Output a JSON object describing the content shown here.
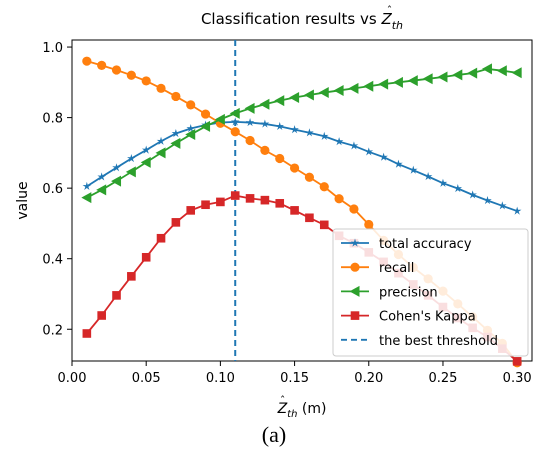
{
  "caption": "(a)",
  "chart_data": {
    "type": "line",
    "title_prefix": "Classification results vs ",
    "title_var": "Z",
    "title_sub": "th",
    "xlabel_var": "Z",
    "xlabel_sub": "th",
    "xlabel_unit": " (m)",
    "ylabel": "value",
    "xlim": [
      0.0,
      0.31
    ],
    "ylim": [
      0.11,
      1.02
    ],
    "xticks": [
      0.0,
      0.05,
      0.1,
      0.15,
      0.2,
      0.25,
      0.3
    ],
    "xtick_labels": [
      "0.00",
      "0.05",
      "0.10",
      "0.15",
      "0.20",
      "0.25",
      "0.30"
    ],
    "yticks": [
      0.2,
      0.4,
      0.6,
      0.8,
      1.0
    ],
    "ytick_labels": [
      "0.2",
      "0.4",
      "0.6",
      "0.8",
      "1.0"
    ],
    "grid": false,
    "legend_position": "lower-right",
    "x": [
      0.01,
      0.02,
      0.03,
      0.04,
      0.05,
      0.06,
      0.07,
      0.08,
      0.09,
      0.1,
      0.11,
      0.12,
      0.13,
      0.14,
      0.15,
      0.16,
      0.17,
      0.18,
      0.19,
      0.2,
      0.21,
      0.22,
      0.23,
      0.24,
      0.25,
      0.26,
      0.27,
      0.28,
      0.29,
      0.3
    ],
    "series": [
      {
        "name": "total accuracy",
        "color": "#1f77b4",
        "marker": "star",
        "values": [
          0.605,
          0.632,
          0.658,
          0.684,
          0.708,
          0.733,
          0.755,
          0.769,
          0.779,
          0.786,
          0.788,
          0.786,
          0.782,
          0.775,
          0.766,
          0.757,
          0.747,
          0.732,
          0.72,
          0.703,
          0.688,
          0.668,
          0.651,
          0.633,
          0.614,
          0.599,
          0.581,
          0.565,
          0.55,
          0.535
        ]
      },
      {
        "name": "recall",
        "color": "#ff7f0e",
        "marker": "circle",
        "values": [
          0.96,
          0.948,
          0.935,
          0.92,
          0.904,
          0.883,
          0.86,
          0.836,
          0.81,
          0.784,
          0.76,
          0.735,
          0.707,
          0.684,
          0.657,
          0.631,
          0.604,
          0.57,
          0.541,
          0.497,
          0.452,
          0.412,
          0.375,
          0.343,
          0.308,
          0.272,
          0.235,
          0.197,
          0.16,
          0.105
        ]
      },
      {
        "name": "precision",
        "color": "#2ca02c",
        "marker": "triangle-left",
        "values": [
          0.573,
          0.595,
          0.62,
          0.646,
          0.673,
          0.7,
          0.727,
          0.752,
          0.775,
          0.795,
          0.812,
          0.826,
          0.838,
          0.848,
          0.857,
          0.864,
          0.871,
          0.877,
          0.883,
          0.889,
          0.895,
          0.9,
          0.905,
          0.91,
          0.915,
          0.921,
          0.926,
          0.938,
          0.933,
          0.927
        ]
      },
      {
        "name": "Cohen's Kappa",
        "color": "#d62728",
        "marker": "square",
        "values": [
          0.188,
          0.239,
          0.296,
          0.35,
          0.404,
          0.458,
          0.503,
          0.537,
          0.553,
          0.561,
          0.579,
          0.571,
          0.566,
          0.557,
          0.537,
          0.516,
          0.496,
          0.465,
          0.444,
          0.418,
          0.391,
          0.359,
          0.327,
          0.296,
          0.263,
          0.232,
          0.204,
          0.178,
          0.145,
          0.109
        ]
      }
    ],
    "threshold": {
      "name": "the best threshold",
      "color": "#1f77b4",
      "x": 0.11
    }
  }
}
